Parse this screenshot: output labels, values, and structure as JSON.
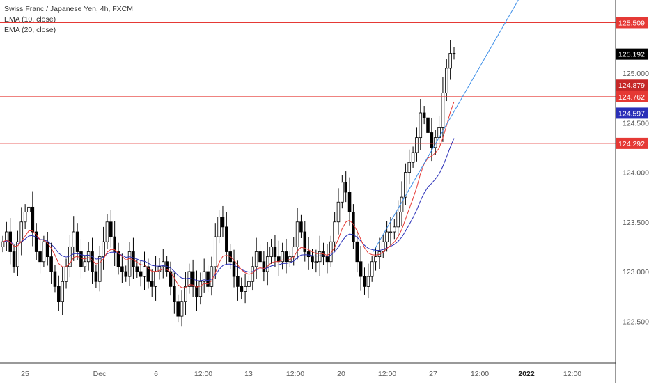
{
  "legend": {
    "symbol_line": "Swiss Franc / Japanese Yen, 4h, FXCM",
    "ema_fast_label": "EMA (10, close)",
    "ema_slow_label": "EMA (20, close)"
  },
  "colors": {
    "background": "#ffffff",
    "bull_candle": "#ffffff",
    "bear_candle": "#000000",
    "candle_outline": "#000000",
    "ema_fast": "#e53935",
    "ema_slow": "#2a2fb8",
    "horizontal_lines": "#e53935",
    "trendline": "#3d8ee8",
    "axis_text": "#555555"
  },
  "chart_data": {
    "type": "candlestick",
    "symbol": "Swiss Franc / Japanese Yen",
    "timeframe": "4h",
    "source": "FXCM",
    "ylim": [
      122.1,
      126.0
    ],
    "y_ticks": [
      "125.000",
      "124.500",
      "124.000",
      "123.500",
      "123.000",
      "122.500"
    ],
    "x_ticks": [
      "25",
      "Dec",
      "6",
      "12:00",
      "13",
      "12:00",
      "20",
      "12:00",
      "27",
      "12:00",
      "2022",
      "12:00"
    ],
    "price_badges": [
      {
        "label": "125.509",
        "kind": "level"
      },
      {
        "label": "125.192",
        "kind": "last"
      },
      {
        "label": "124.879",
        "kind": "ema_fast"
      },
      {
        "label": "124.762",
        "kind": "level"
      },
      {
        "label": "124.597",
        "kind": "ema_slow"
      },
      {
        "label": "124.292",
        "kind": "level"
      }
    ],
    "horizontal_levels": [
      125.509,
      124.762,
      124.292
    ],
    "last_price": 125.192,
    "trendline": {
      "from": [
        "Dec 22",
        123.2
      ],
      "to": [
        "Dec 31",
        126.05
      ]
    },
    "closes": [
      123.3,
      123.4,
      123.2,
      123.05,
      123.3,
      123.5,
      123.6,
      123.65,
      123.4,
      123.2,
      123.1,
      123.3,
      123.15,
      123.0,
      122.85,
      122.7,
      122.9,
      123.05,
      123.25,
      123.4,
      123.2,
      123.05,
      123.1,
      123.2,
      123.0,
      122.9,
      123.15,
      123.3,
      123.5,
      123.35,
      123.2,
      123.05,
      123.0,
      122.95,
      123.2,
      123.05,
      123.0,
      122.95,
      123.05,
      122.9,
      122.85,
      123.0,
      123.05,
      123.1,
      123.0,
      122.85,
      122.7,
      122.55,
      122.7,
      122.85,
      123.0,
      122.85,
      122.75,
      122.9,
      123.0,
      122.85,
      123.05,
      123.35,
      123.55,
      123.45,
      123.2,
      123.1,
      122.95,
      122.85,
      122.8,
      122.85,
      122.9,
      123.05,
      123.2,
      123.1,
      123.0,
      123.15,
      123.25,
      123.15,
      123.1,
      123.2,
      123.1,
      123.15,
      123.25,
      123.5,
      123.4,
      123.2,
      123.15,
      123.1,
      123.1,
      123.2,
      123.15,
      123.1,
      123.3,
      123.5,
      123.7,
      123.9,
      123.8,
      123.6,
      123.3,
      123.1,
      122.95,
      122.85,
      122.95,
      123.1,
      123.15,
      123.2,
      123.3,
      123.4,
      123.4,
      123.45,
      123.6,
      123.75,
      124.0,
      124.1,
      124.2,
      124.35,
      124.6,
      124.55,
      124.4,
      124.25,
      124.35,
      124.45,
      124.8,
      125.05,
      125.2,
      125.192
    ]
  }
}
